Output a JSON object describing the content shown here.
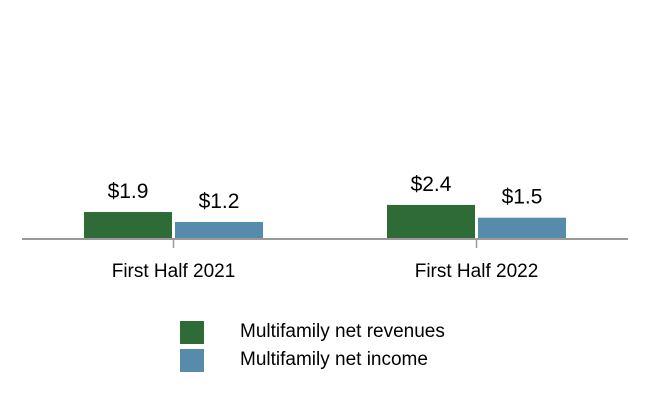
{
  "chart_data": {
    "type": "bar",
    "categories": [
      "First Half 2021",
      "First Half 2022"
    ],
    "series": [
      {
        "name": "Multifamily net revenues",
        "values": [
          1.9,
          2.4
        ],
        "labels": [
          "$1.9",
          "$2.4"
        ],
        "color": "#2e6b37"
      },
      {
        "name": "Multifamily net income",
        "values": [
          1.2,
          1.5
        ],
        "labels": [
          "$1.2",
          "$1.5"
        ],
        "color": "#578bac"
      }
    ],
    "title": "",
    "xlabel": "",
    "ylabel": "",
    "ylim": [
      0,
      9
    ],
    "grid": false,
    "legend_position": "bottom-center",
    "axis_color": "#9a9a9a"
  }
}
